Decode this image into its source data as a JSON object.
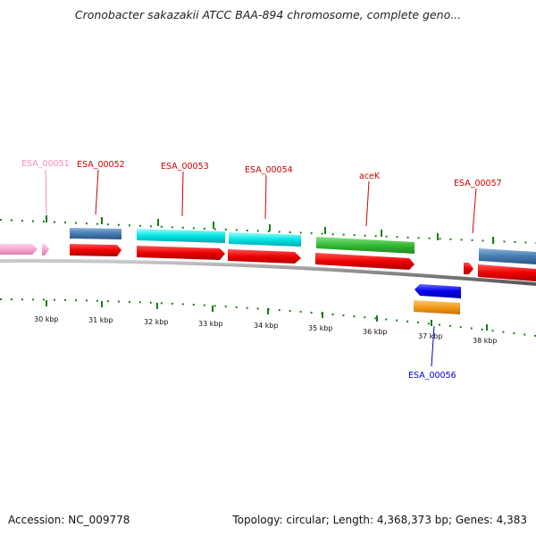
{
  "title": "Cronobacter sakazakii ATCC BAA-894 chromosome, complete geno...",
  "footer": {
    "accession": "Accession: NC_009778",
    "summary": "Topology: circular; Length: 4,368,373 bp; Genes: 4,383"
  },
  "scale_labels": [
    "30 kbp",
    "31 kbp",
    "32 kbp",
    "33 kbp",
    "34 kbp",
    "35 kbp",
    "36 kbp",
    "37 kbp",
    "38 kbp"
  ],
  "gene_labels": [
    {
      "text": "ESA_00051",
      "color": "#f28cc0"
    },
    {
      "text": "ESA_00052",
      "color": "#cc0000"
    },
    {
      "text": "ESA_00053",
      "color": "#cc0000"
    },
    {
      "text": "ESA_00054",
      "color": "#cc0000"
    },
    {
      "text": "aceK",
      "color": "#cc0000"
    },
    {
      "text": "ESA_00057",
      "color": "#cc0000"
    },
    {
      "text": "ESA_00056",
      "color": "#0000cc"
    }
  ],
  "colors": {
    "backbone": "#8a8a8a",
    "ticks": "#1a7a1a",
    "cds_forward": "#ee0000",
    "cds_reverse": "#0000ee",
    "gene_pink": "#f7a6d2",
    "gene_steelblue": "#4a7fb5",
    "gene_cyan": "#00e5e5",
    "gene_green": "#33bb33",
    "gene_orange": "#f59a1a"
  }
}
